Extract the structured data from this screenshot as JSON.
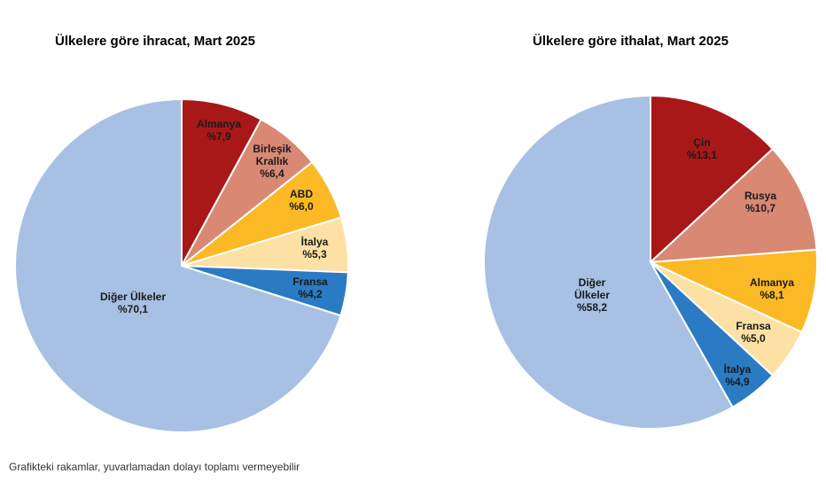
{
  "chart_data": [
    {
      "type": "pie",
      "title": "Ülkelere göre ihracat, Mart 2025",
      "slices": [
        {
          "lines": [
            "Almanya",
            "%7,9"
          ],
          "value": 7.9,
          "color": "#a81818"
        },
        {
          "lines": [
            "Birleşik",
            "Krallık",
            "%6,4"
          ],
          "value": 6.4,
          "color": "#d98874"
        },
        {
          "lines": [
            "ABD",
            "%6,0"
          ],
          "value": 6.0,
          "color": "#fbb925"
        },
        {
          "lines": [
            "İtalya",
            "%5,3"
          ],
          "value": 5.3,
          "color": "#fde0a3"
        },
        {
          "lines": [
            "Fransa",
            "%4,2"
          ],
          "value": 4.2,
          "color": "#2a7bc3"
        },
        {
          "lines": [
            "Diğer Ülkeler",
            "%70,1"
          ],
          "value": 70.1,
          "color": "#a7c0e3"
        }
      ]
    },
    {
      "type": "pie",
      "title": "Ülkelere göre ithalat, Mart 2025",
      "slices": [
        {
          "lines": [
            "Çin",
            "%13,1"
          ],
          "value": 13.1,
          "color": "#a81818"
        },
        {
          "lines": [
            "Rusya",
            "%10,7"
          ],
          "value": 10.7,
          "color": "#d98874"
        },
        {
          "lines": [
            "Almanya",
            "%8,1"
          ],
          "value": 8.1,
          "color": "#fbb925"
        },
        {
          "lines": [
            "Fransa",
            "%5,0"
          ],
          "value": 5.0,
          "color": "#fde0a3"
        },
        {
          "lines": [
            "İtalya",
            "%4,9"
          ],
          "value": 4.9,
          "color": "#2a7bc3"
        },
        {
          "lines": [
            "Diğer",
            "Ülkeler",
            "%58,2"
          ],
          "value": 58.2,
          "color": "#a7c0e3"
        }
      ]
    }
  ],
  "footnote": "Grafikteki rakamlar, yuvarlamadan dolayı toplamı vermeyebilir"
}
